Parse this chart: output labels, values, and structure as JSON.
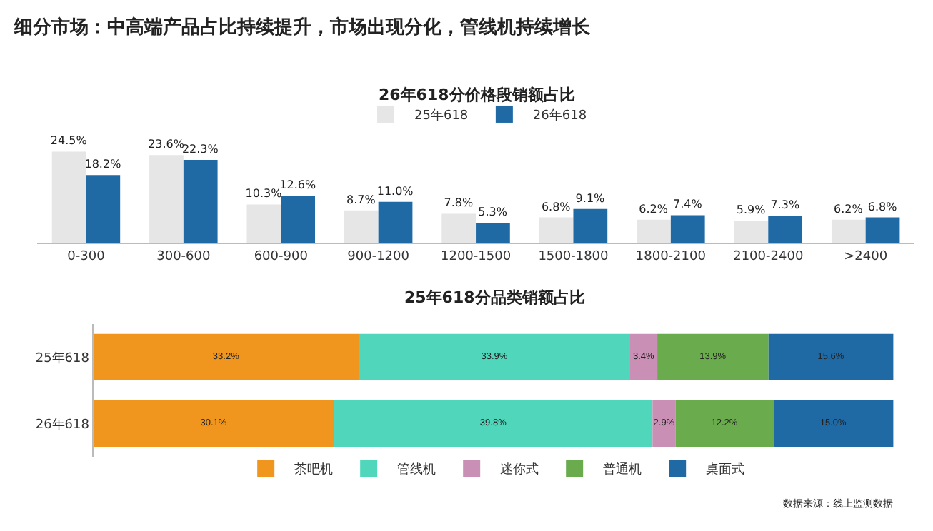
{
  "chart_data": [
    {
      "type": "bar",
      "title": "26年618分价格段销额占比",
      "annotations": [
        "细分市场：中高端产品占比持续提升，市场出现分化，管线机持续增长"
      ],
      "categories": [
        "0-300",
        "300-600",
        "600-900",
        "900-1200",
        "1200-1500",
        "1500-1800",
        "1800-2100",
        "2100-2400",
        ">2400"
      ],
      "series": [
        {
          "name": "25年618",
          "color": "#e6e6e6",
          "values": [
            24.5,
            23.6,
            10.3,
            8.7,
            7.8,
            6.8,
            6.2,
            5.9,
            6.2
          ],
          "value_labels": [
            "24.5%",
            "23.6%",
            "10.3%",
            "8.7%",
            "7.8%",
            "6.8%",
            "6.2%",
            "5.9%",
            "6.2%"
          ]
        },
        {
          "name": "26年618",
          "color": "#1f6aa5",
          "values": [
            18.2,
            22.3,
            12.6,
            11.0,
            5.3,
            9.1,
            7.4,
            7.3,
            6.8
          ],
          "value_labels": [
            "18.2%",
            "22.3%",
            "12.6%",
            "11.0%",
            "5.3%",
            "9.1%",
            "7.4%",
            "7.3%",
            "6.8%"
          ]
        }
      ],
      "legend": "top"
    },
    {
      "type": "bar",
      "orientation": "horizontal",
      "stacked": true,
      "title": "25年618分品类销额占比",
      "annotations": [
        "数据来源：线上监测数据"
      ],
      "categories": [
        "25年618",
        "26年618"
      ],
      "series": [
        {
          "name": "茶吧机",
          "color": "#f0961e",
          "values": [
            33.2,
            30.1
          ],
          "value_labels": [
            "33.2%",
            "30.1%"
          ]
        },
        {
          "name": "管线机",
          "color": "#4fd6bb",
          "values": [
            33.9,
            39.8
          ],
          "value_labels": [
            "33.9%",
            "39.8%"
          ]
        },
        {
          "name": "迷你式",
          "color": "#c98fb4",
          "values": [
            3.4,
            2.9
          ],
          "value_labels": [
            "3.4%",
            "2.9%"
          ]
        },
        {
          "name": "普通机",
          "color": "#6aab4d",
          "values": [
            13.9,
            12.2
          ],
          "value_labels": [
            "13.9%",
            "12.2%"
          ]
        },
        {
          "name": "桌面式",
          "color": "#1f6aa5",
          "values": [
            15.6,
            15.0
          ],
          "value_labels": [
            "15.6%",
            "15.0%"
          ]
        }
      ],
      "legend": "bottom"
    }
  ]
}
